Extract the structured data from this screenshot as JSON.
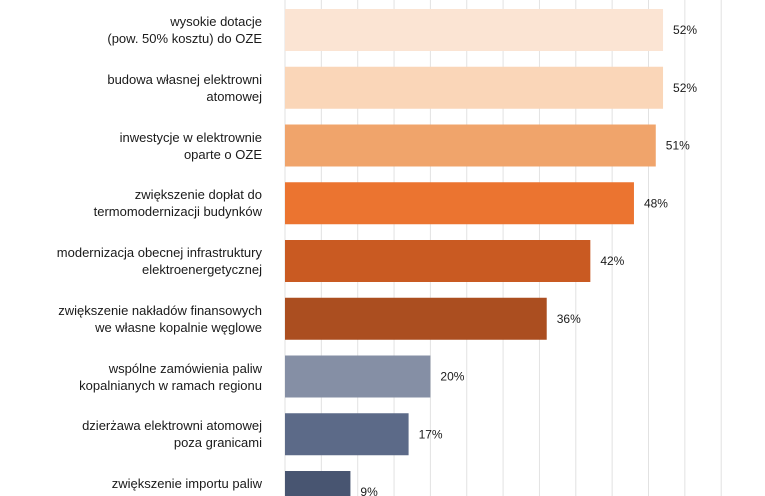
{
  "chart_data": {
    "type": "bar",
    "orientation": "horizontal",
    "categories": [
      "wysokie dotacje \n(pow. 50% kosztu) do OZE",
      "budowa własnej elektrowni\natomowej",
      "inwestycje w elektrownie\noparte  o OZE",
      "zwiększenie dopłat do\ntermomodernizacji budynków",
      "modernizacja obecnej infrastruktury\nelektroenergetycznej",
      "zwiększenie nakładów finansowych\nwe własne kopalnie węglowe",
      "wspólne zamówienia paliw\nkopalnianych w ramach regionu",
      "dzierżawa elektrowni atomowej\npoza granicami",
      "zwiększenie importu paliw\n"
    ],
    "values": [
      52,
      52,
      51,
      48,
      42,
      36,
      20,
      17,
      9
    ],
    "value_labels": [
      "52%",
      "52%",
      "51%",
      "48%",
      "42%",
      "36%",
      "20%",
      "17%",
      "9%"
    ],
    "bar_colors": [
      "#fbe4d3",
      "#fad6b8",
      "#f0a46b",
      "#eb7430",
      "#c95a22",
      "#ab4e20",
      "#858fa5",
      "#5c6a88",
      "#485571"
    ],
    "xlim": [
      0,
      60
    ],
    "grid": true,
    "gridline_color": "#e2e2e2"
  }
}
